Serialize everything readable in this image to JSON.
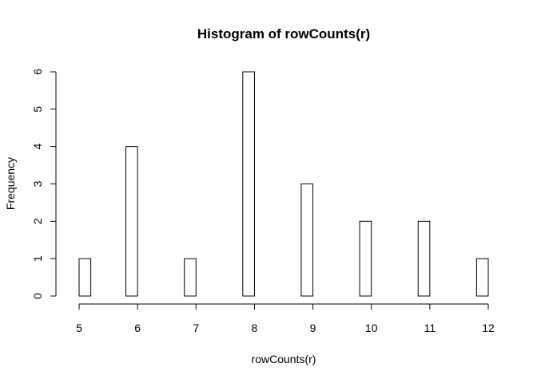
{
  "chart_data": {
    "type": "bar",
    "title": "Histogram of rowCounts(r)",
    "xlabel": "rowCounts(r)",
    "ylabel": "Frequency",
    "xlim": [
      5,
      12
    ],
    "ylim": [
      0,
      6
    ],
    "x_ticks": [
      5,
      6,
      7,
      8,
      9,
      10,
      11,
      12
    ],
    "y_ticks": [
      0,
      1,
      2,
      3,
      4,
      5,
      6
    ],
    "bin_width": 0.2,
    "bins": [
      {
        "start": 5.0,
        "end": 5.2,
        "count": 1
      },
      {
        "start": 5.2,
        "end": 5.4,
        "count": 0
      },
      {
        "start": 5.4,
        "end": 5.6,
        "count": 0
      },
      {
        "start": 5.6,
        "end": 5.8,
        "count": 0
      },
      {
        "start": 5.8,
        "end": 6.0,
        "count": 4
      },
      {
        "start": 6.0,
        "end": 6.2,
        "count": 0
      },
      {
        "start": 6.2,
        "end": 6.4,
        "count": 0
      },
      {
        "start": 6.4,
        "end": 6.6,
        "count": 0
      },
      {
        "start": 6.6,
        "end": 6.8,
        "count": 0
      },
      {
        "start": 6.8,
        "end": 7.0,
        "count": 1
      },
      {
        "start": 7.0,
        "end": 7.2,
        "count": 0
      },
      {
        "start": 7.2,
        "end": 7.4,
        "count": 0
      },
      {
        "start": 7.4,
        "end": 7.6,
        "count": 0
      },
      {
        "start": 7.6,
        "end": 7.8,
        "count": 0
      },
      {
        "start": 7.8,
        "end": 8.0,
        "count": 6
      },
      {
        "start": 8.0,
        "end": 8.2,
        "count": 0
      },
      {
        "start": 8.2,
        "end": 8.4,
        "count": 0
      },
      {
        "start": 8.4,
        "end": 8.6,
        "count": 0
      },
      {
        "start": 8.6,
        "end": 8.8,
        "count": 0
      },
      {
        "start": 8.8,
        "end": 9.0,
        "count": 3
      },
      {
        "start": 9.0,
        "end": 9.2,
        "count": 0
      },
      {
        "start": 9.2,
        "end": 9.4,
        "count": 0
      },
      {
        "start": 9.4,
        "end": 9.6,
        "count": 0
      },
      {
        "start": 9.6,
        "end": 9.8,
        "count": 0
      },
      {
        "start": 9.8,
        "end": 10.0,
        "count": 2
      },
      {
        "start": 10.0,
        "end": 10.2,
        "count": 0
      },
      {
        "start": 10.2,
        "end": 10.4,
        "count": 0
      },
      {
        "start": 10.4,
        "end": 10.6,
        "count": 0
      },
      {
        "start": 10.6,
        "end": 10.8,
        "count": 0
      },
      {
        "start": 10.8,
        "end": 11.0,
        "count": 2
      },
      {
        "start": 11.0,
        "end": 11.2,
        "count": 0
      },
      {
        "start": 11.2,
        "end": 11.4,
        "count": 0
      },
      {
        "start": 11.4,
        "end": 11.6,
        "count": 0
      },
      {
        "start": 11.6,
        "end": 11.8,
        "count": 0
      },
      {
        "start": 11.8,
        "end": 12.0,
        "count": 1
      }
    ],
    "bar_fill": "#ffffff",
    "bar_stroke": "#000000",
    "grid": false,
    "legend": "none"
  }
}
